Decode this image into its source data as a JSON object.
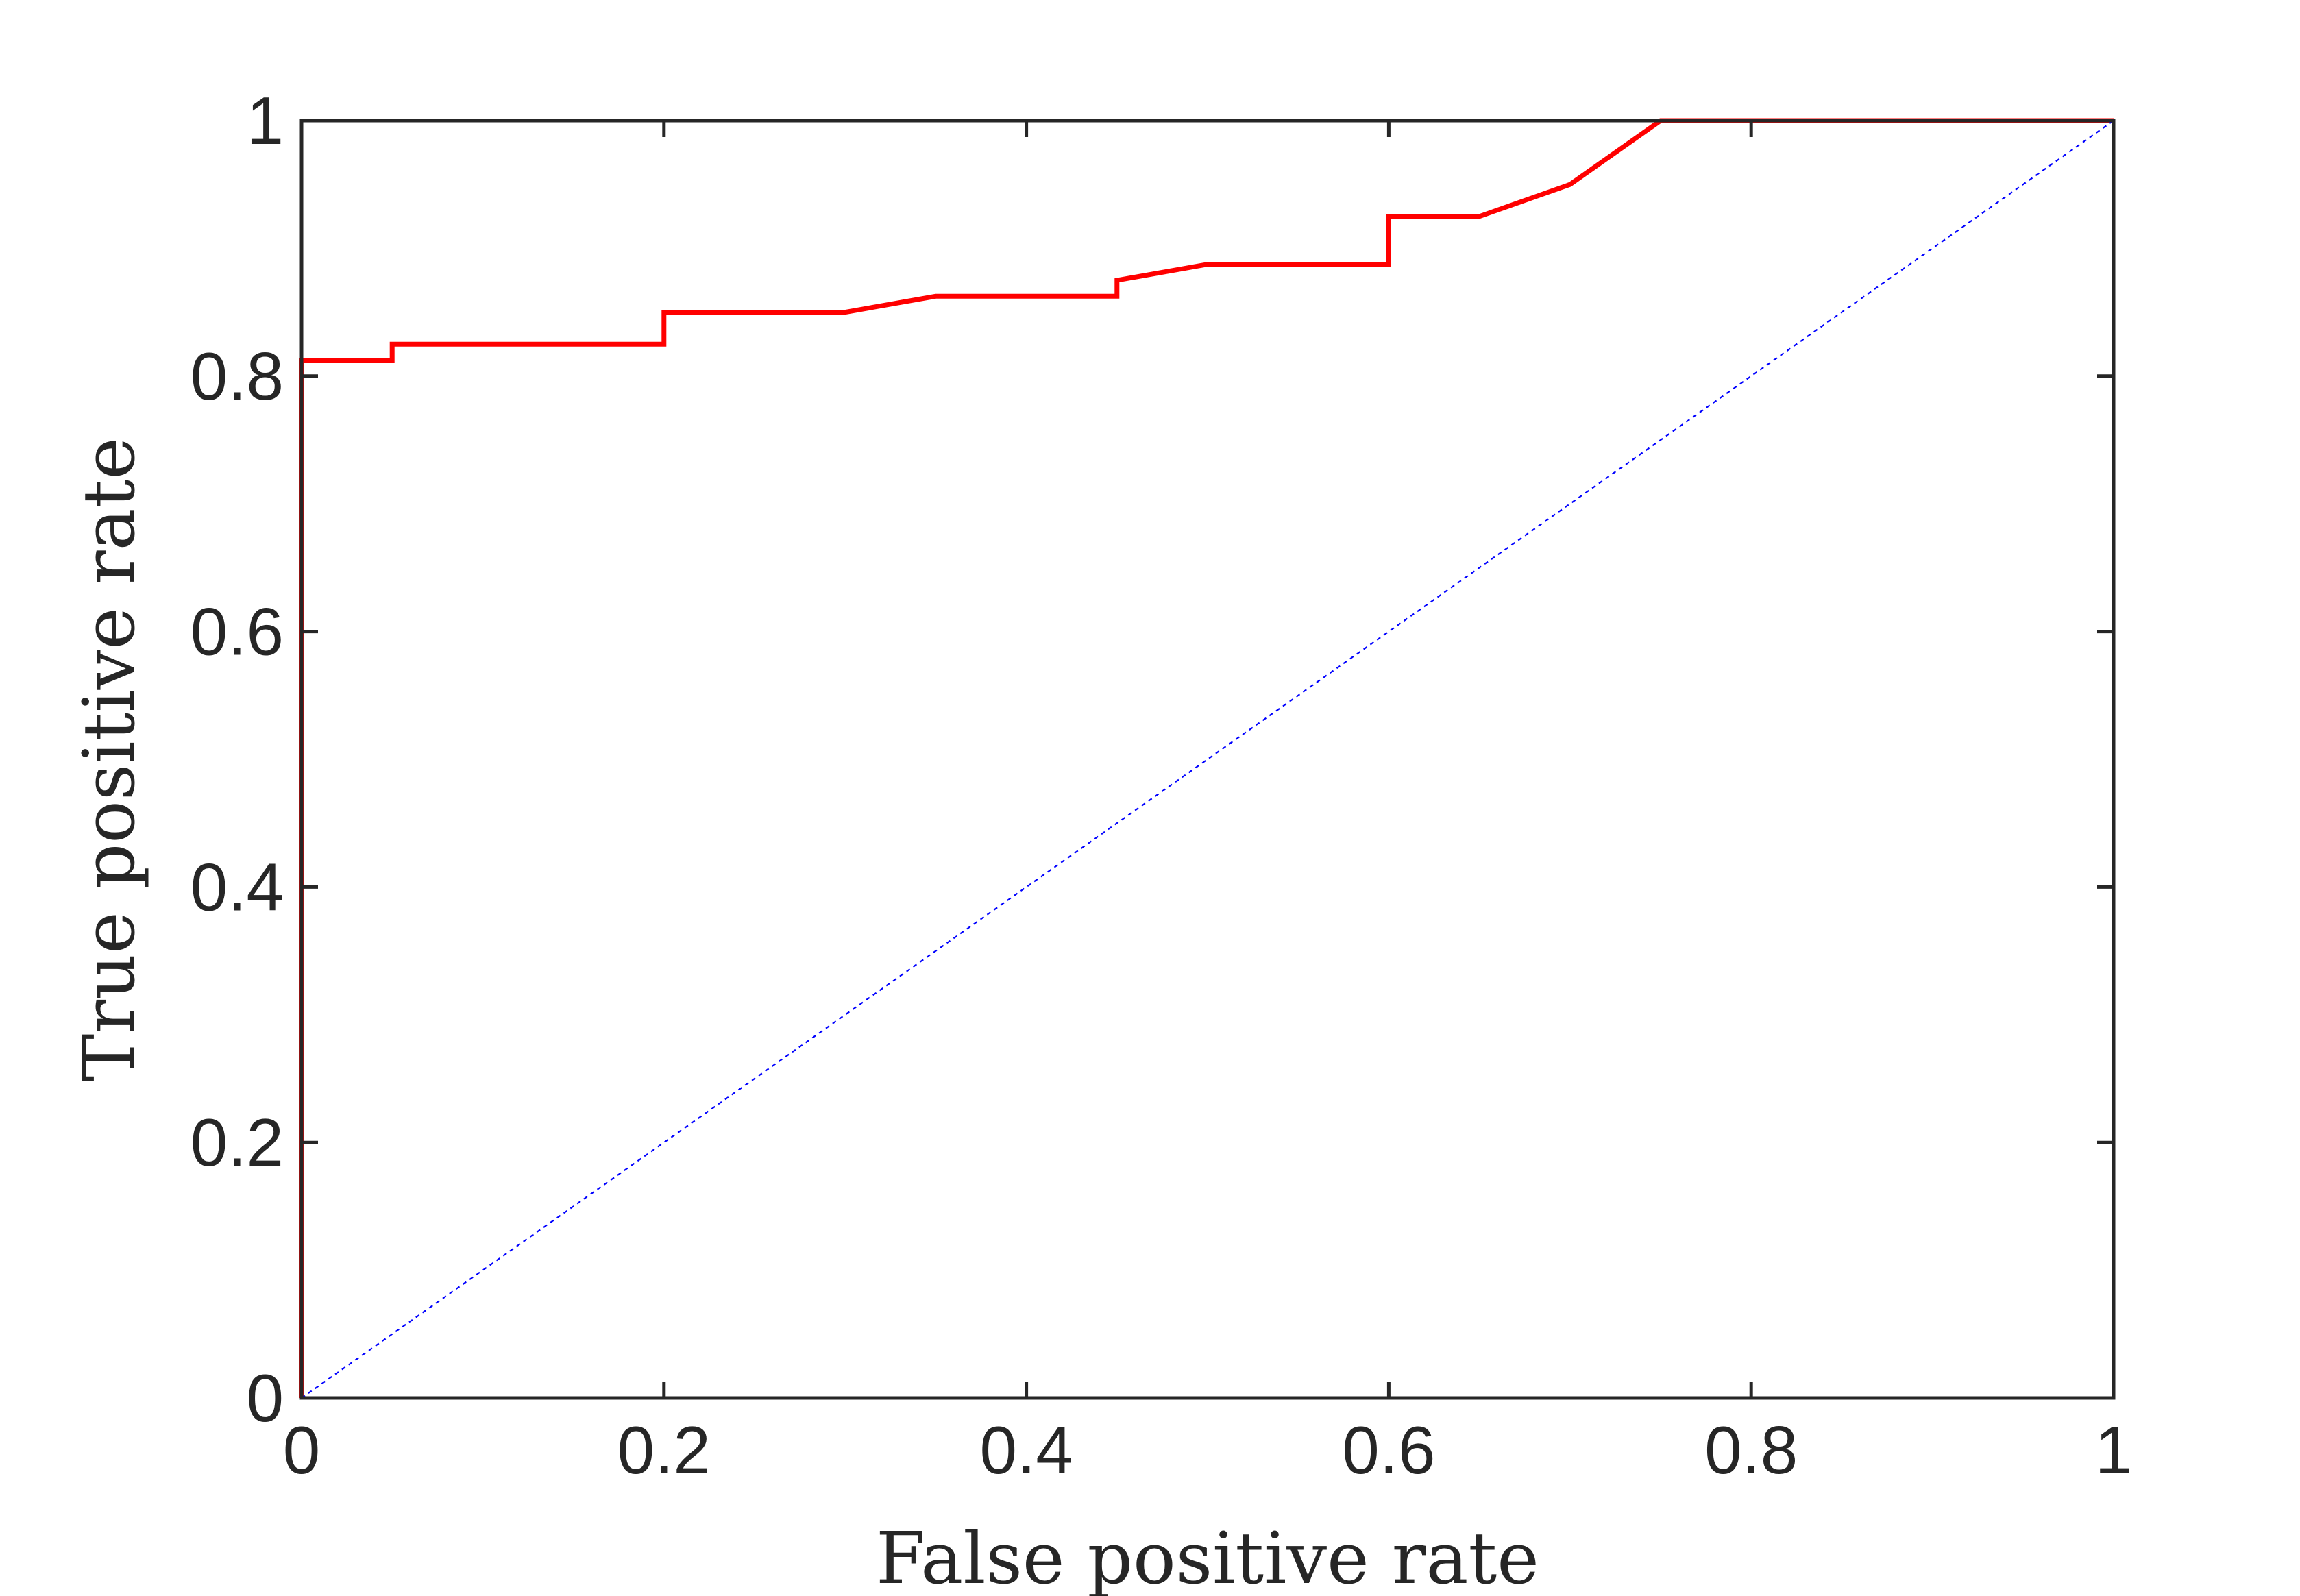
{
  "chart_data": {
    "type": "line",
    "title": "",
    "xlabel": "False positive rate",
    "ylabel": "True positive rate",
    "xlim": [
      0,
      1
    ],
    "ylim": [
      0,
      1
    ],
    "xticks": [
      "0",
      "0.2",
      "0.4",
      "0.6",
      "0.8",
      "1"
    ],
    "yticks": [
      "0",
      "0.2",
      "0.4",
      "0.6",
      "0.8",
      "1"
    ],
    "grid": false,
    "legend": "none",
    "series": [
      {
        "color": "#ff0000",
        "style": "solid",
        "x": [
          0,
          0,
          0.05,
          0.05,
          0.2,
          0.2,
          0.3,
          0.35,
          0.45,
          0.45,
          0.5,
          0.6,
          0.6,
          0.65,
          0.7,
          0.75,
          1.0
        ],
        "y": [
          0,
          0.8125,
          0.8125,
          0.825,
          0.825,
          0.85,
          0.85,
          0.8625,
          0.8625,
          0.875,
          0.8875,
          0.8875,
          0.925,
          0.925,
          0.95,
          1.0,
          1.0
        ]
      },
      {
        "color": "#0000ff",
        "style": "dotted",
        "x": [
          0,
          1
        ],
        "y": [
          0,
          1
        ]
      }
    ]
  }
}
